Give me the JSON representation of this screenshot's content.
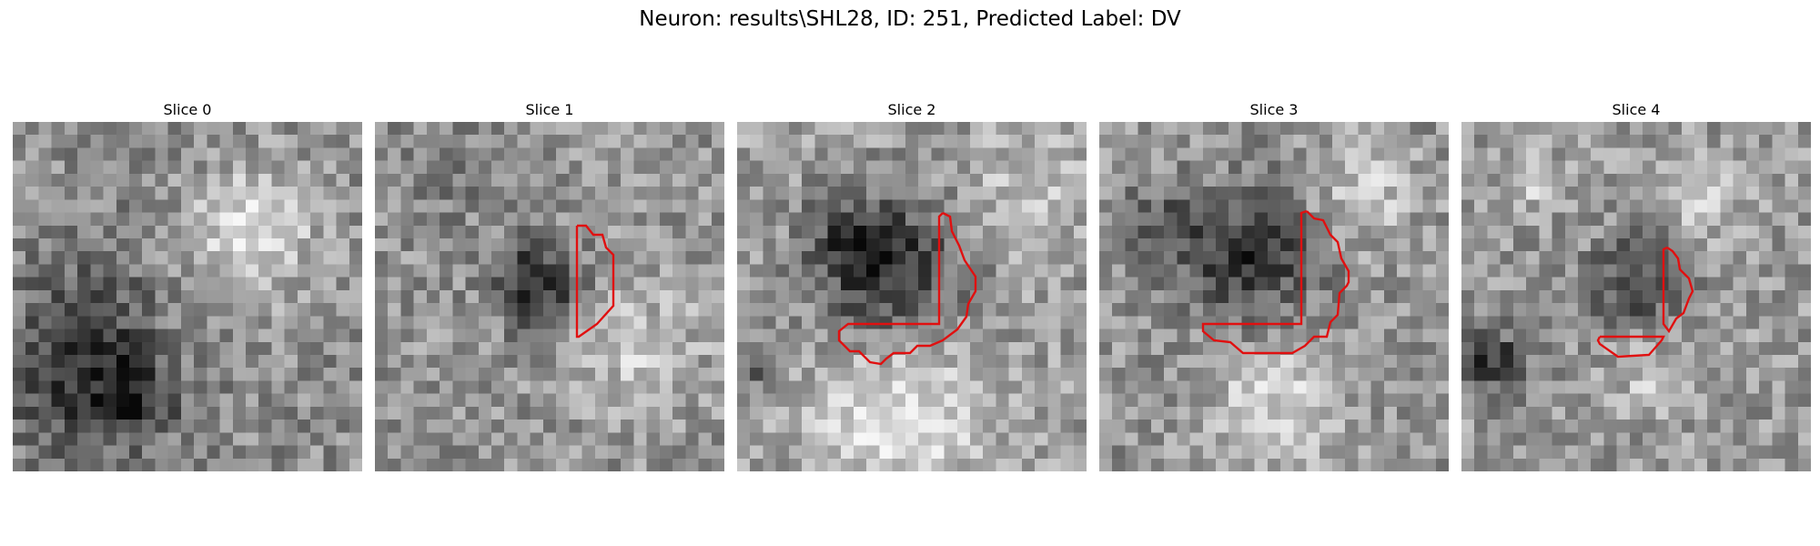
{
  "figure": {
    "title": "Neuron: results\\SHL28, ID: 251, Predicted Label: DV"
  },
  "panels": [
    {
      "title": "Slice 0",
      "has_contour": false
    },
    {
      "title": "Slice 1",
      "has_contour": true
    },
    {
      "title": "Slice 2",
      "has_contour": true
    },
    {
      "title": "Slice 3",
      "has_contour": true
    },
    {
      "title": "Slice 4",
      "has_contour": true
    }
  ],
  "colors": {
    "contour": "#e01010",
    "background": "#ffffff"
  }
}
